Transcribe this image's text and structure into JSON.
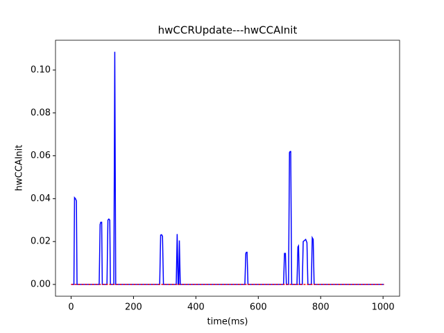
{
  "chart_data": {
    "type": "line",
    "title": "hwCCRUpdate---hwCCAInit",
    "xlabel": "time(ms)",
    "ylabel": "hwCCAInit",
    "x": [
      0,
      9,
      11,
      14,
      17,
      19,
      90,
      93,
      95,
      98,
      100,
      115,
      118,
      121,
      124,
      126,
      137,
      140,
      143,
      284,
      287,
      290,
      293,
      296,
      337,
      340,
      343,
      345,
      347,
      350,
      557,
      560,
      562,
      564,
      567,
      681,
      684,
      687,
      690,
      697,
      700,
      702,
      704,
      707,
      724,
      727,
      729,
      732,
      741,
      744,
      748,
      752,
      756,
      759,
      770,
      773,
      776,
      779,
      1003
    ],
    "series": [
      {
        "color": "#0000ff",
        "style": "solid",
        "values": [
          0,
          0,
          0.0405,
          0.04,
          0.039,
          0,
          0,
          0.028,
          0.029,
          0.029,
          0,
          0,
          0.03,
          0.0305,
          0.03,
          0,
          0,
          0.1085,
          0,
          0,
          0.023,
          0.0232,
          0.0225,
          0,
          0,
          0.0235,
          0,
          0,
          0.0205,
          0,
          0,
          0.0145,
          0.015,
          0.015,
          0,
          0,
          0.0145,
          0.0145,
          0,
          0,
          0.0615,
          0.062,
          0.062,
          0,
          0,
          0.0175,
          0.018,
          0,
          0,
          0.02,
          0.0205,
          0.021,
          0.0195,
          0,
          0,
          0.0218,
          0.021,
          0,
          0
        ]
      },
      {
        "color": "#ff0000",
        "style": "dashed",
        "values": [
          0,
          0,
          0,
          0,
          0,
          0,
          0,
          0,
          0,
          0,
          0,
          0,
          0,
          0,
          0,
          0,
          0,
          0,
          0,
          0,
          0,
          0,
          0,
          0,
          0,
          0,
          0,
          0,
          0,
          0,
          0,
          0,
          0,
          0,
          0,
          0,
          0,
          0,
          0,
          0,
          0,
          0,
          0,
          0,
          0,
          0,
          0,
          0,
          0,
          0,
          0,
          0,
          0,
          0,
          0,
          0,
          0,
          0,
          0
        ]
      }
    ],
    "xlim": [
      -50,
      1053
    ],
    "xticks": [
      0,
      200,
      400,
      600,
      800,
      1000
    ],
    "ylim": [
      -0.0055,
      0.1139
    ],
    "yticks": [
      {
        "value": 0,
        "label": "0.00"
      },
      {
        "value": 0.02,
        "label": "0.02"
      },
      {
        "value": 0.04,
        "label": "0.04"
      },
      {
        "value": 0.06,
        "label": "0.06"
      },
      {
        "value": 0.08,
        "label": "0.08"
      },
      {
        "value": 0.1,
        "label": "0.10"
      }
    ]
  }
}
